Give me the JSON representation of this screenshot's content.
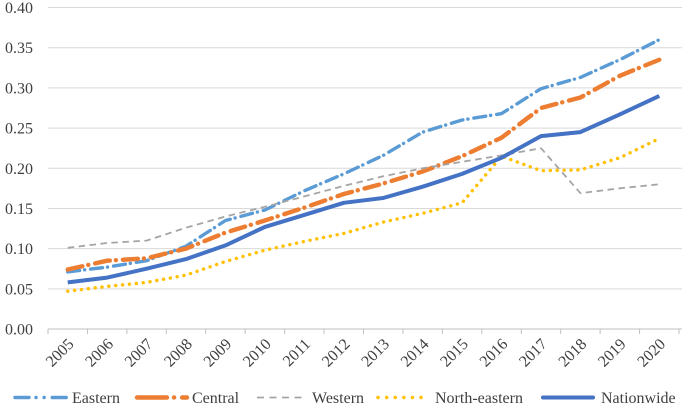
{
  "chart_data": {
    "type": "line",
    "title": "",
    "xlabel": "",
    "ylabel": "",
    "categories": [
      "2005",
      "2006",
      "2007",
      "2008",
      "2009",
      "2010",
      "2011",
      "2012",
      "2013",
      "2014",
      "2015",
      "2016",
      "2017",
      "2018",
      "2019",
      "2020"
    ],
    "ylim": [
      0.0,
      0.4
    ],
    "ytick_step": 0.05,
    "ytick_labels": [
      "0.00",
      "0.05",
      "0.10",
      "0.15",
      "0.20",
      "0.25",
      "0.30",
      "0.35",
      "0.40"
    ],
    "grid": true,
    "legend_position": "bottom",
    "series": [
      {
        "name": "Eastern",
        "color": "#5B9BD5",
        "style": "dash-dot",
        "width": 3.4,
        "values": [
          0.071,
          0.077,
          0.085,
          0.103,
          0.135,
          0.148,
          0.172,
          0.193,
          0.216,
          0.245,
          0.26,
          0.268,
          0.299,
          0.313,
          0.335,
          0.36
        ]
      },
      {
        "name": "Central",
        "color": "#ED7D31",
        "style": "long-dash-dot",
        "width": 4.4,
        "values": [
          0.074,
          0.085,
          0.088,
          0.1,
          0.12,
          0.135,
          0.151,
          0.168,
          0.181,
          0.196,
          0.215,
          0.238,
          0.275,
          0.288,
          0.315,
          0.335
        ]
      },
      {
        "name": "Western",
        "color": "#A5A5A5",
        "style": "dash",
        "width": 1.8,
        "values": [
          0.101,
          0.107,
          0.11,
          0.126,
          0.14,
          0.152,
          0.165,
          0.178,
          0.19,
          0.2,
          0.208,
          0.216,
          0.225,
          0.169,
          0.175,
          0.18
        ]
      },
      {
        "name": "North-eastern",
        "color": "#FFC000",
        "style": "dot",
        "width": 3.4,
        "values": [
          0.047,
          0.053,
          0.058,
          0.067,
          0.084,
          0.098,
          0.109,
          0.119,
          0.133,
          0.144,
          0.157,
          0.215,
          0.197,
          0.198,
          0.213,
          0.237
        ]
      },
      {
        "name": "Nationwide",
        "color": "#4472C4",
        "style": "solid",
        "width": 4.0,
        "values": [
          0.058,
          0.064,
          0.075,
          0.087,
          0.104,
          0.127,
          0.142,
          0.157,
          0.163,
          0.177,
          0.193,
          0.213,
          0.24,
          0.245,
          0.267,
          0.29
        ]
      }
    ],
    "axis_color": "#bfbfbf",
    "gridline_color": "#d9d9d9",
    "tick_label_color": "#3f3f3f"
  }
}
